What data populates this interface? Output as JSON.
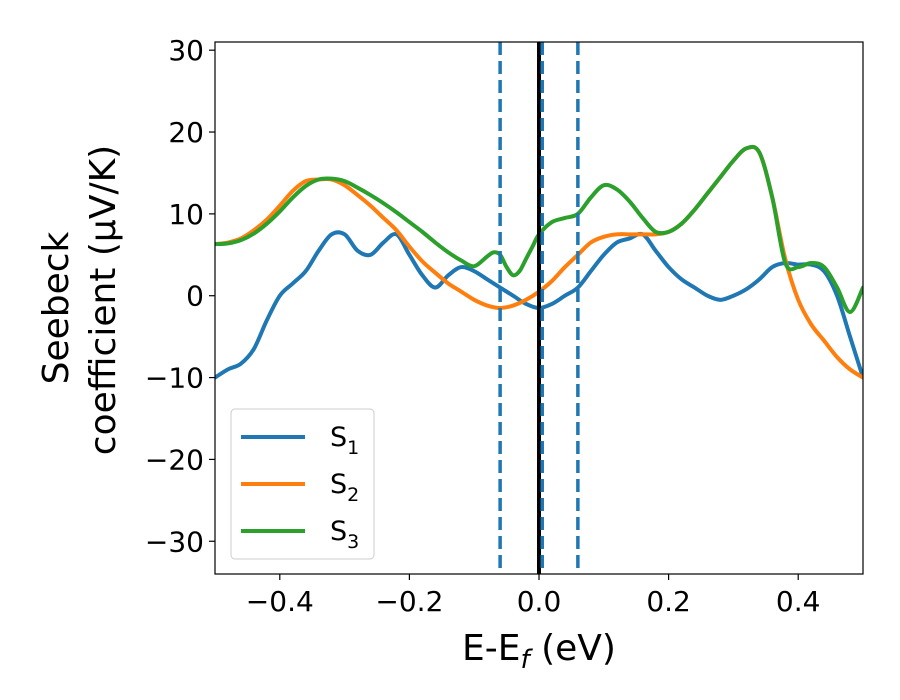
{
  "chart_data": {
    "type": "line",
    "xlabel": {
      "main": "E-E",
      "sub": "f",
      "unit": " (eV)"
    },
    "ylabel": {
      "line1": "Seebeck",
      "line2": "coefficient  (μV/K)"
    },
    "xlim": [
      -0.5,
      0.5
    ],
    "ylim": [
      -34,
      31
    ],
    "x_ticks": [
      -0.4,
      -0.2,
      0.0,
      0.2,
      0.4
    ],
    "x_tick_labels": [
      "−0.4",
      "−0.2",
      "0.0",
      "0.2",
      "0.4"
    ],
    "y_ticks": [
      -30,
      -20,
      -10,
      0,
      10,
      20,
      30
    ],
    "y_tick_labels": [
      "−30",
      "−20",
      "−10",
      "0",
      "10",
      "20",
      "30"
    ],
    "grid": false,
    "legend": "lower-left",
    "vlines": [
      {
        "x": -0.06,
        "style": "dashed",
        "color": "#1f77b4"
      },
      {
        "x": 0.0,
        "style": "solid",
        "color": "#000000"
      },
      {
        "x": 0.005,
        "style": "dashed",
        "color": "#1f77b4"
      },
      {
        "x": 0.06,
        "style": "dashed",
        "color": "#1f77b4"
      }
    ],
    "series": [
      {
        "name": "S",
        "sub": "1",
        "color": "#1f77b4",
        "x": [
          -0.5,
          -0.48,
          -0.46,
          -0.44,
          -0.42,
          -0.4,
          -0.38,
          -0.36,
          -0.34,
          -0.32,
          -0.3,
          -0.28,
          -0.26,
          -0.24,
          -0.22,
          -0.2,
          -0.18,
          -0.16,
          -0.14,
          -0.12,
          -0.1,
          -0.08,
          -0.06,
          -0.04,
          -0.02,
          0.0,
          0.02,
          0.04,
          0.06,
          0.08,
          0.1,
          0.12,
          0.14,
          0.16,
          0.18,
          0.2,
          0.22,
          0.24,
          0.26,
          0.28,
          0.3,
          0.32,
          0.34,
          0.36,
          0.38,
          0.4,
          0.42,
          0.44,
          0.46,
          0.48,
          0.5
        ],
        "y": [
          -10.0,
          -9.0,
          -8.3,
          -6.5,
          -3.0,
          0.0,
          1.5,
          3.0,
          5.5,
          7.5,
          7.5,
          5.5,
          5.0,
          6.5,
          7.5,
          5.0,
          2.5,
          1.0,
          2.5,
          3.5,
          3.0,
          2.0,
          1.0,
          0.0,
          -1.0,
          -1.5,
          -1.0,
          0.0,
          1.0,
          3.0,
          5.0,
          6.5,
          7.0,
          7.5,
          5.5,
          3.5,
          2.0,
          1.0,
          0.0,
          -0.5,
          0.0,
          0.8,
          2.0,
          3.5,
          4.0,
          3.8,
          3.8,
          3.0,
          0.0,
          -5.0,
          -10.0
        ]
      },
      {
        "name": "S",
        "sub": "2",
        "color": "#ff7f0e",
        "x": [
          -0.5,
          -0.48,
          -0.46,
          -0.44,
          -0.42,
          -0.4,
          -0.38,
          -0.36,
          -0.34,
          -0.32,
          -0.3,
          -0.28,
          -0.26,
          -0.24,
          -0.22,
          -0.2,
          -0.18,
          -0.16,
          -0.14,
          -0.12,
          -0.1,
          -0.08,
          -0.06,
          -0.04,
          -0.02,
          0.0,
          0.02,
          0.04,
          0.06,
          0.08,
          0.1,
          0.12,
          0.14,
          0.16,
          0.18,
          0.2,
          0.22,
          0.24,
          0.26,
          0.28,
          0.3,
          0.32,
          0.34,
          0.36,
          0.38,
          0.4,
          0.42,
          0.44,
          0.46,
          0.48,
          0.5
        ],
        "y": [
          6.3,
          6.5,
          7.0,
          8.0,
          9.3,
          11.0,
          12.8,
          14.0,
          14.2,
          14.2,
          13.5,
          12.3,
          11.0,
          9.5,
          8.0,
          6.0,
          4.2,
          2.8,
          1.5,
          0.5,
          -0.5,
          -1.2,
          -1.5,
          -1.2,
          -0.5,
          0.5,
          1.8,
          3.5,
          5.0,
          6.5,
          7.2,
          7.5,
          7.5,
          7.5,
          7.5,
          7.8,
          8.8,
          10.5,
          12.5,
          14.5,
          16.5,
          18.0,
          17.5,
          12.0,
          4.5,
          -0.5,
          -3.5,
          -5.5,
          -7.5,
          -9.0,
          -10.0
        ]
      },
      {
        "name": "S",
        "sub": "3",
        "color": "#2ca02c",
        "x": [
          -0.5,
          -0.48,
          -0.46,
          -0.44,
          -0.42,
          -0.4,
          -0.38,
          -0.36,
          -0.34,
          -0.32,
          -0.3,
          -0.28,
          -0.26,
          -0.24,
          -0.22,
          -0.2,
          -0.18,
          -0.16,
          -0.14,
          -0.12,
          -0.1,
          -0.08,
          -0.07,
          -0.06,
          -0.05,
          -0.04,
          -0.03,
          -0.02,
          -0.01,
          0.0,
          0.02,
          0.04,
          0.06,
          0.08,
          0.1,
          0.12,
          0.14,
          0.16,
          0.18,
          0.2,
          0.22,
          0.24,
          0.26,
          0.28,
          0.3,
          0.32,
          0.34,
          0.36,
          0.38,
          0.4,
          0.42,
          0.44,
          0.46,
          0.48,
          0.5
        ],
        "y": [
          6.3,
          6.4,
          6.8,
          7.6,
          8.8,
          10.3,
          12.0,
          13.4,
          14.2,
          14.3,
          14.0,
          13.2,
          12.3,
          11.3,
          10.2,
          9.0,
          7.8,
          6.5,
          5.3,
          4.3,
          3.6,
          4.8,
          5.3,
          5.0,
          3.5,
          2.5,
          3.0,
          4.5,
          6.0,
          7.5,
          9.0,
          9.5,
          10.0,
          12.0,
          13.5,
          13.0,
          11.5,
          9.5,
          7.8,
          7.8,
          8.8,
          10.5,
          12.5,
          14.5,
          16.5,
          18.0,
          17.5,
          12.0,
          4.0,
          3.5,
          4.0,
          3.5,
          1.0,
          -2.0,
          1.0
        ]
      }
    ]
  }
}
